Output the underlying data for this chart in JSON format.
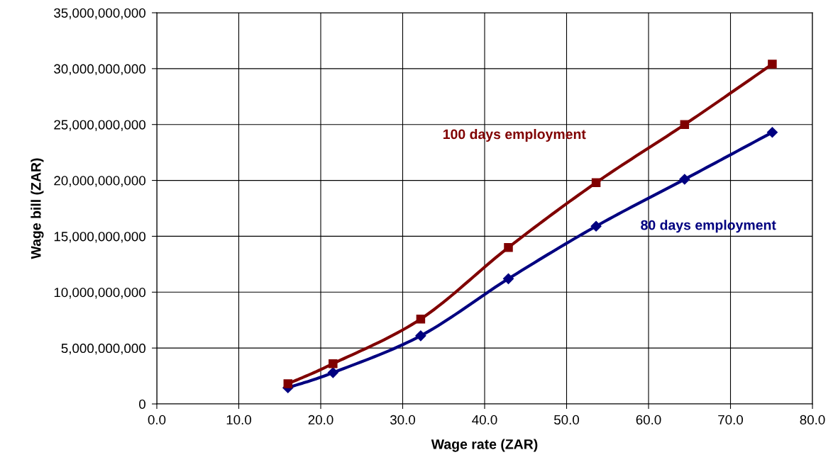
{
  "chart_data": {
    "type": "line",
    "xlabel": "Wage rate (ZAR)",
    "ylabel": "Wage bill (ZAR)",
    "x": [
      16.0,
      21.5,
      32.2,
      42.9,
      53.6,
      64.4,
      75.1
    ],
    "series": [
      {
        "name": "80 days employment",
        "color": "#000080",
        "marker": "diamond",
        "values": [
          1450000000,
          2800000000,
          6100000000,
          11200000000,
          15900000000,
          20100000000,
          24300000000
        ]
      },
      {
        "name": "100 days employment",
        "color": "#800000",
        "marker": "square",
        "values": [
          1800000000,
          3600000000,
          7600000000,
          14000000000,
          19800000000,
          25000000000,
          30400000000
        ]
      }
    ],
    "xlim": [
      0,
      80
    ],
    "xticks": [
      {
        "value": 0,
        "label": "0.0"
      },
      {
        "value": 10,
        "label": "10.0"
      },
      {
        "value": 20,
        "label": "20.0"
      },
      {
        "value": 30,
        "label": "30.0"
      },
      {
        "value": 40,
        "label": "40.0"
      },
      {
        "value": 50,
        "label": "50.0"
      },
      {
        "value": 60,
        "label": "60.0"
      },
      {
        "value": 70,
        "label": "70.0"
      },
      {
        "value": 80,
        "label": "80.0"
      }
    ],
    "ylim": [
      0,
      35000000000
    ],
    "yticks": [
      0,
      {
        "value": 5000000000,
        "label": "5,000,000,000"
      },
      {
        "value": 10000000000,
        "label": "10,000,000,000"
      },
      {
        "value": 15000000000,
        "label": "15,000,000,000"
      },
      {
        "value": 20000000000,
        "label": "20,000,000,000"
      },
      {
        "value": 25000000000,
        "label": "25,000,000,000"
      },
      {
        "value": 30000000000,
        "label": "30,000,000,000"
      },
      {
        "value": 35000000000,
        "label": "35,000,000,000"
      }
    ],
    "grid": true,
    "legend": false,
    "line_style": "solid"
  }
}
